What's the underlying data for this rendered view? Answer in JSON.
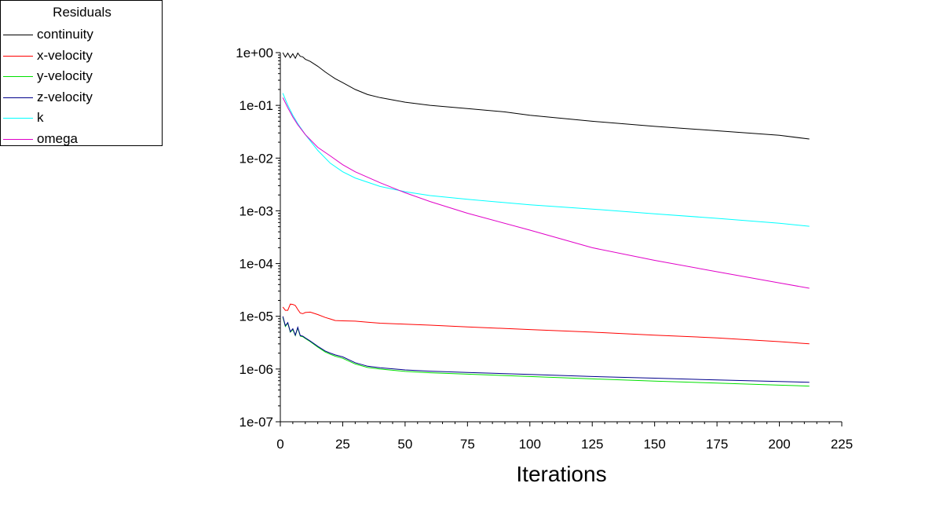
{
  "chart_data": {
    "type": "line",
    "title": "",
    "legend_title": "Residuals",
    "legend_position": "top-left",
    "xlabel": "Iterations",
    "ylabel": "",
    "xlim": [
      0,
      225
    ],
    "ylim": [
      1e-07,
      1
    ],
    "y_scale": "log",
    "grid": false,
    "x_ticks": [
      0,
      25,
      50,
      75,
      100,
      125,
      150,
      175,
      200,
      225
    ],
    "x_tick_labels": [
      "0",
      "25",
      "50",
      "75",
      "100",
      "125",
      "150",
      "175",
      "200",
      "225"
    ],
    "y_ticks": [
      1e-07,
      1e-06,
      1e-05,
      0.0001,
      0.001,
      0.01,
      0.1,
      1
    ],
    "y_tick_labels": [
      "1e-07",
      "1e-06",
      "1e-05",
      "1e-04",
      "1e-03",
      "1e-02",
      "1e-01",
      "1e+00"
    ],
    "series": [
      {
        "name": "continuity",
        "color": "#000000",
        "x": [
          1,
          2,
          3,
          4,
          5,
          6,
          7,
          8,
          9,
          10,
          12,
          15,
          18,
          20,
          22,
          25,
          30,
          35,
          40,
          50,
          60,
          75,
          90,
          100,
          125,
          150,
          175,
          200,
          212
        ],
        "y": [
          1.0,
          0.82,
          0.98,
          0.8,
          0.95,
          0.78,
          0.98,
          0.85,
          0.83,
          0.75,
          0.68,
          0.55,
          0.43,
          0.37,
          0.32,
          0.27,
          0.2,
          0.16,
          0.14,
          0.115,
          0.1,
          0.087,
          0.075,
          0.065,
          0.05,
          0.04,
          0.033,
          0.027,
          0.023
        ]
      },
      {
        "name": "x-velocity",
        "color": "#ff0000",
        "x": [
          1,
          2,
          3,
          4,
          5,
          6,
          7,
          8,
          9,
          10,
          12,
          15,
          18,
          20,
          22,
          25,
          30,
          35,
          40,
          50,
          60,
          75,
          100,
          125,
          150,
          175,
          200,
          212
        ],
        "y": [
          1.5e-05,
          1.3e-05,
          1.3e-05,
          1.7e-05,
          1.68e-05,
          1.6e-05,
          1.35e-05,
          1.15e-05,
          1.12e-05,
          1.18e-05,
          1.2e-05,
          1.08e-05,
          9.5e-06,
          8.9e-06,
          8.3e-06,
          8.2e-06,
          8.1e-06,
          7.7e-06,
          7.4e-06,
          7.1e-06,
          6.8e-06,
          6.3e-06,
          5.6e-06,
          5e-06,
          4.4e-06,
          3.9e-06,
          3.3e-06,
          3e-06
        ]
      },
      {
        "name": "y-velocity",
        "color": "#00e000",
        "x": [
          1,
          2,
          3,
          4,
          5,
          6,
          7,
          8,
          9,
          10,
          12,
          15,
          18,
          20,
          22,
          25,
          30,
          35,
          40,
          50,
          60,
          75,
          100,
          125,
          150,
          175,
          200,
          212
        ],
        "y": [
          9.6e-06,
          6.4e-06,
          7.4e-06,
          5e-06,
          5.6e-06,
          4.3e-06,
          6e-06,
          4.2e-06,
          4.1e-06,
          3.8e-06,
          3.3e-06,
          2.6e-06,
          2.1e-06,
          1.9e-06,
          1.75e-06,
          1.6e-06,
          1.25e-06,
          1.07e-06,
          1e-06,
          9e-07,
          8.5e-07,
          8e-07,
          7.2e-07,
          6.5e-07,
          5.9e-07,
          5.4e-07,
          4.95e-07,
          4.75e-07
        ]
      },
      {
        "name": "z-velocity",
        "color": "#00008b",
        "x": [
          1,
          2,
          3,
          4,
          5,
          6,
          7,
          8,
          9,
          10,
          12,
          15,
          18,
          20,
          22,
          25,
          30,
          35,
          40,
          50,
          60,
          75,
          100,
          125,
          150,
          175,
          200,
          212
        ],
        "y": [
          1e-05,
          6.6e-06,
          7.6e-06,
          5.1e-06,
          5.8e-06,
          4.4e-06,
          6.2e-06,
          4.3e-06,
          4.2e-06,
          3.9e-06,
          3.4e-06,
          2.7e-06,
          2.2e-06,
          2e-06,
          1.85e-06,
          1.7e-06,
          1.32e-06,
          1.13e-06,
          1.06e-06,
          9.6e-07,
          9.1e-07,
          8.6e-07,
          7.9e-07,
          7.2e-07,
          6.7e-07,
          6.2e-07,
          5.8e-07,
          5.6e-07
        ]
      },
      {
        "name": "k",
        "color": "#00ffff",
        "x": [
          1,
          3,
          5,
          7,
          10,
          15,
          20,
          25,
          30,
          40,
          50,
          60,
          75,
          100,
          125,
          150,
          175,
          200,
          212
        ],
        "y": [
          0.17,
          0.1,
          0.065,
          0.045,
          0.028,
          0.014,
          0.008,
          0.0055,
          0.0042,
          0.0029,
          0.0023,
          0.00195,
          0.00165,
          0.0013,
          0.00108,
          0.00088,
          0.00072,
          0.00058,
          0.00051
        ]
      },
      {
        "name": "omega",
        "color": "#e000c8",
        "x": [
          1,
          3,
          5,
          7,
          10,
          15,
          20,
          25,
          30,
          40,
          50,
          60,
          75,
          100,
          125,
          150,
          175,
          200,
          212
        ],
        "y": [
          0.14,
          0.09,
          0.06,
          0.043,
          0.028,
          0.016,
          0.011,
          0.0075,
          0.0055,
          0.0034,
          0.0022,
          0.0015,
          0.0009,
          0.00043,
          0.0002,
          0.000115,
          7e-05,
          4.3e-05,
          3.4e-05
        ]
      }
    ]
  }
}
